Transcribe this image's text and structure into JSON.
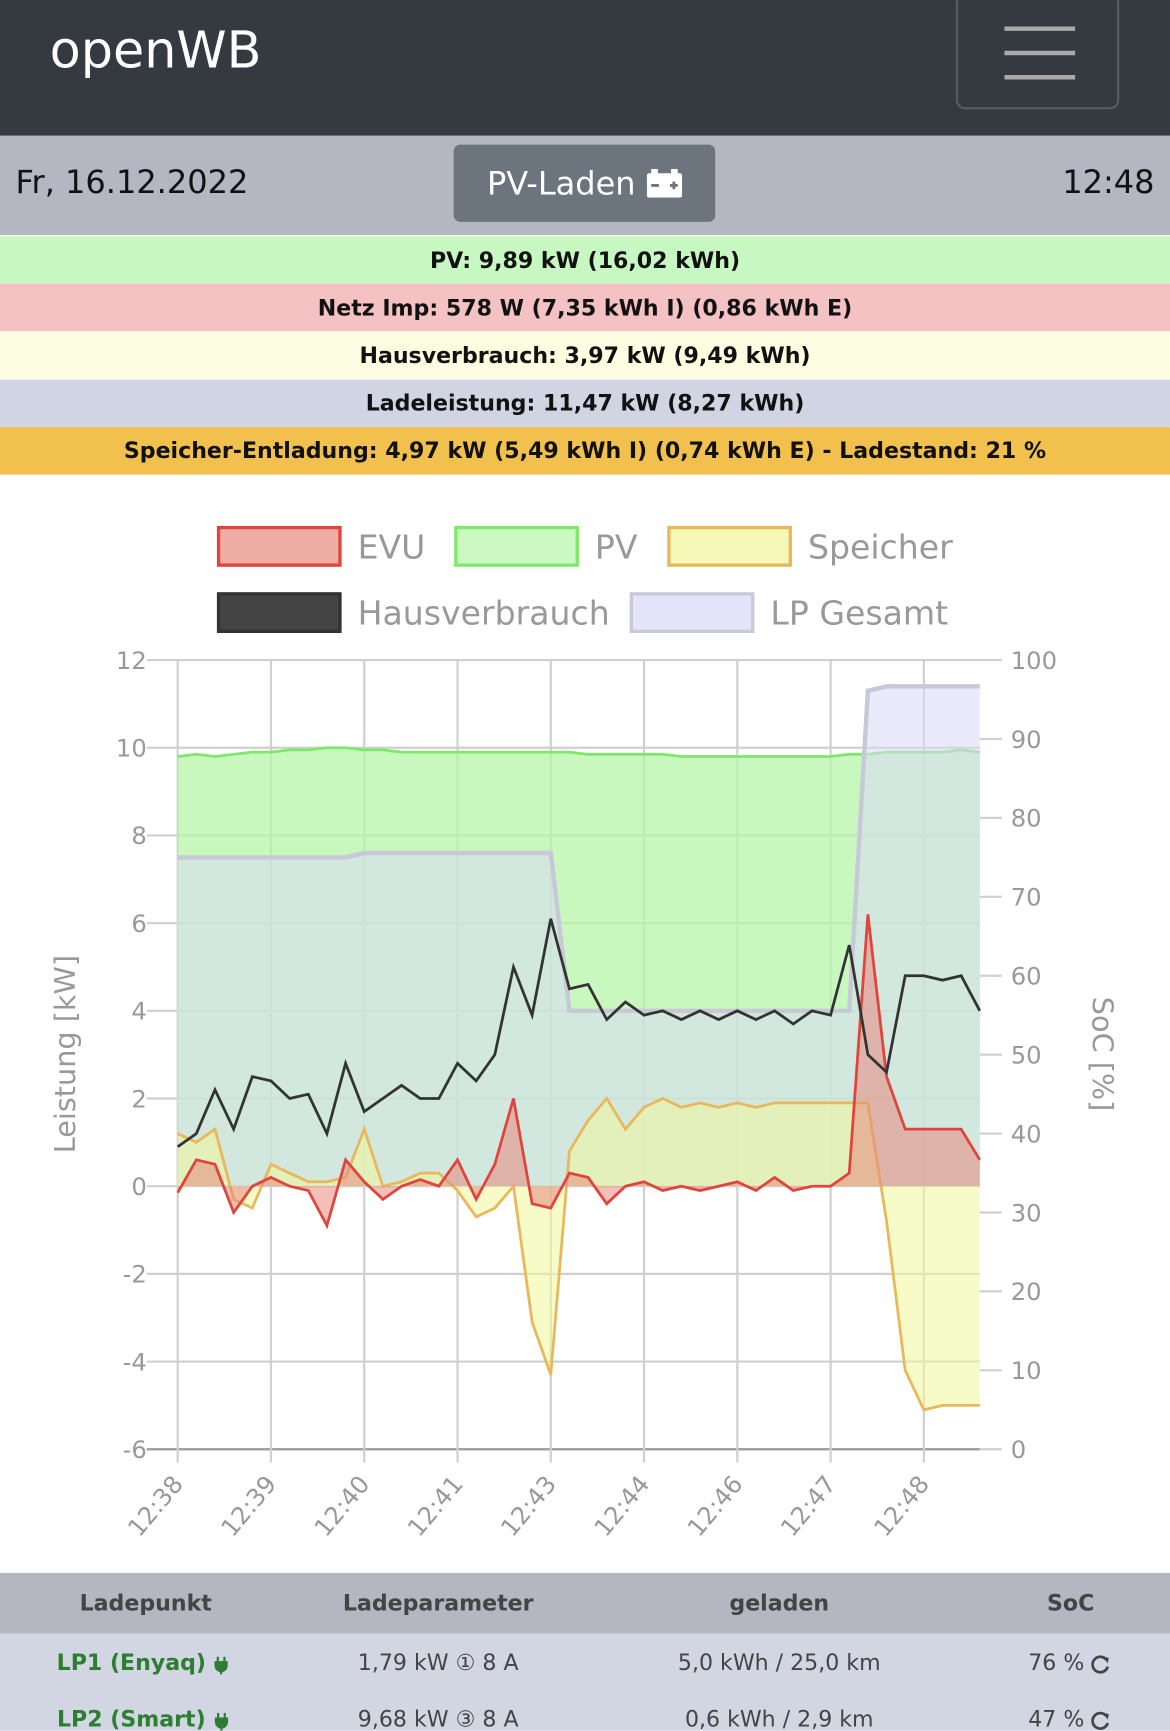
{
  "header": {
    "brand": "openWB"
  },
  "status": {
    "date": "Fr, 16.12.2022",
    "mode": "PV-Laden",
    "time": "12:48"
  },
  "summary": [
    {
      "text": "PV: 9,89 kW (16,02 kWh)",
      "color": "#c8f8c2"
    },
    {
      "text": "Netz Imp: 578 W (7,35 kWh I) (0,86 kWh E)",
      "color": "#f4c2c3"
    },
    {
      "text": "Hausverbrauch: 3,97 kW (9,49 kWh)",
      "color": "#fdfde2"
    },
    {
      "text": "Ladeleistung: 11,47 kW (8,27 kWh)",
      "color": "#d1d5e3"
    },
    {
      "text": "Speicher-Entladung: 4,97 kW (5,49 kWh I) (0,74 kWh E) - Ladestand: 21 %",
      "color": "#f2c04c"
    }
  ],
  "chart_data": {
    "type": "line",
    "categories": [
      "12:38",
      null,
      null,
      null,
      null,
      "12:39",
      null,
      null,
      null,
      null,
      "12:40",
      null,
      null,
      null,
      null,
      "12:41",
      null,
      null,
      null,
      null,
      "12:43",
      null,
      null,
      null,
      null,
      "12:44",
      null,
      null,
      null,
      null,
      "12:46",
      null,
      null,
      null,
      null,
      "12:47",
      null,
      null,
      null,
      null,
      "12:48",
      null,
      null,
      null
    ],
    "series": [
      {
        "name": "PV",
        "color": "#7ee86a",
        "fill": "#b7f5a8",
        "values": [
          9.8,
          9.85,
          9.8,
          9.85,
          9.9,
          9.9,
          9.95,
          9.95,
          10.0,
          10.0,
          9.95,
          9.95,
          9.9,
          9.9,
          9.9,
          9.9,
          9.9,
          9.9,
          9.9,
          9.9,
          9.9,
          9.9,
          9.85,
          9.85,
          9.85,
          9.85,
          9.85,
          9.8,
          9.8,
          9.8,
          9.8,
          9.8,
          9.8,
          9.8,
          9.8,
          9.8,
          9.85,
          9.85,
          9.9,
          9.9,
          9.9,
          9.9,
          9.95,
          9.9
        ]
      },
      {
        "name": "LP Gesamt",
        "color": "#c8c8d8",
        "fill": "#d8d8f6",
        "values": [
          7.5,
          7.5,
          7.5,
          7.5,
          7.5,
          7.5,
          7.5,
          7.5,
          7.5,
          7.5,
          7.6,
          7.6,
          7.6,
          7.6,
          7.6,
          7.6,
          7.6,
          7.6,
          7.6,
          7.6,
          7.6,
          4.0,
          4.0,
          4.0,
          4.0,
          4.0,
          4.0,
          4.0,
          4.0,
          4.0,
          4.0,
          4.0,
          4.0,
          4.0,
          4.0,
          4.0,
          4.0,
          11.3,
          11.4,
          11.4,
          11.4,
          11.4,
          11.4,
          11.4
        ]
      },
      {
        "name": "Speicher",
        "color": "#e8b85a",
        "fill": "#f0f79a",
        "values": [
          1.2,
          1.0,
          1.3,
          -0.3,
          -0.5,
          0.5,
          0.3,
          0.1,
          0.1,
          0.2,
          1.3,
          0.0,
          0.1,
          0.3,
          0.3,
          -0.1,
          -0.7,
          -0.5,
          0.0,
          -3.1,
          -4.3,
          0.8,
          1.5,
          2.0,
          1.3,
          1.8,
          2.0,
          1.8,
          1.9,
          1.8,
          1.9,
          1.8,
          1.9,
          1.9,
          1.9,
          1.9,
          1.9,
          1.9,
          -0.8,
          -4.2,
          -5.1,
          -5.0,
          -5.0,
          -5.0
        ]
      },
      {
        "name": "EVU",
        "color": "#e0443c",
        "fill": "#e88a80",
        "values": [
          -0.15,
          0.6,
          0.5,
          -0.6,
          0.0,
          0.2,
          0.0,
          -0.1,
          -0.9,
          0.6,
          0.1,
          -0.3,
          0.0,
          0.15,
          0.0,
          0.6,
          -0.3,
          0.5,
          2.0,
          -0.4,
          -0.5,
          0.3,
          0.2,
          -0.4,
          0.0,
          0.1,
          -0.1,
          0.0,
          -0.1,
          0.0,
          0.1,
          -0.1,
          0.2,
          -0.1,
          0.0,
          0.0,
          0.3,
          6.2,
          2.5,
          1.3,
          1.3,
          1.3,
          1.3,
          0.6
        ]
      },
      {
        "name": "Hausverbrauch",
        "color": "#333333",
        "fill": "#444444",
        "values": [
          0.9,
          1.2,
          2.2,
          1.3,
          2.5,
          2.4,
          2.0,
          2.1,
          1.2,
          2.8,
          1.7,
          2.0,
          2.3,
          2.0,
          2.0,
          2.8,
          2.4,
          3.0,
          5.0,
          3.9,
          6.1,
          4.5,
          4.6,
          3.8,
          4.2,
          3.9,
          4.0,
          3.8,
          4.0,
          3.8,
          4.0,
          3.8,
          4.0,
          3.7,
          4.0,
          3.9,
          5.5,
          3.0,
          2.6,
          4.8,
          4.8,
          4.7,
          4.8,
          4.0
        ]
      }
    ],
    "ylim": [
      -6,
      12
    ],
    "yticks": [
      -6,
      -4,
      -2,
      0,
      2,
      4,
      6,
      8,
      10,
      12
    ],
    "y2lim": [
      0,
      100
    ],
    "y2ticks": [
      0,
      10,
      20,
      30,
      40,
      50,
      60,
      70,
      80,
      90,
      100
    ],
    "y_label": "Leistung [kW]",
    "y2_label": "SoC [%]",
    "grid": true,
    "legend": "top"
  },
  "table": {
    "headers": [
      "Ladepunkt",
      "Ladeparameter",
      "geladen",
      "SoC"
    ],
    "rows": [
      [
        "LP1 (Enyaq)",
        "1,79 kW ① 8 A",
        "5,0 kWh / 25,0 km",
        "76 %"
      ],
      [
        "LP2 (Smart)",
        "9,68 kW ③ 8 A",
        "0,6 kWh / 2,9 km",
        "47 %"
      ]
    ]
  }
}
